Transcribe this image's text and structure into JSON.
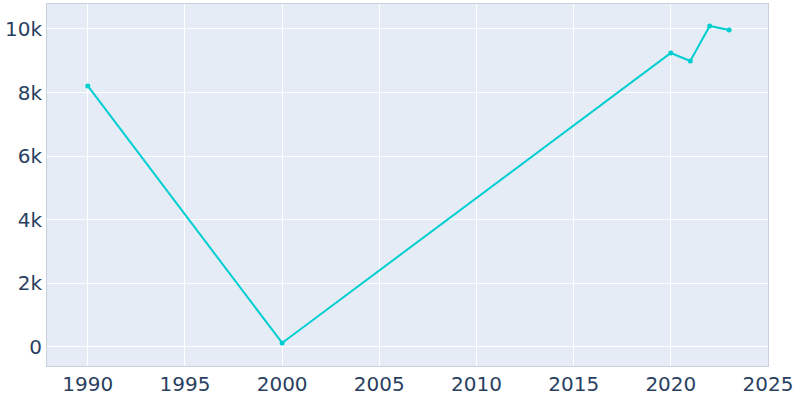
{
  "chart_data": {
    "type": "line",
    "x": [
      1990,
      2000,
      2020,
      2021,
      2022,
      2023
    ],
    "values": [
      8208,
      125,
      9245,
      8994,
      10094,
      9969
    ],
    "color": "#00ced1",
    "marker": "circle",
    "xlim": [
      1987.9,
      2025
    ],
    "xticks": [
      1990,
      1995,
      2000,
      2005,
      2010,
      2015,
      2020,
      2025
    ],
    "ylim": [
      -600,
      10786
    ],
    "yticks": [
      0,
      {
        "value": 2000,
        "label": "2k"
      },
      {
        "value": 4000,
        "label": "4k"
      },
      {
        "value": 6000,
        "label": "6k"
      },
      {
        "value": 8000,
        "label": "8k"
      },
      {
        "value": 10000,
        "label": "10k"
      }
    ],
    "grid": true
  }
}
